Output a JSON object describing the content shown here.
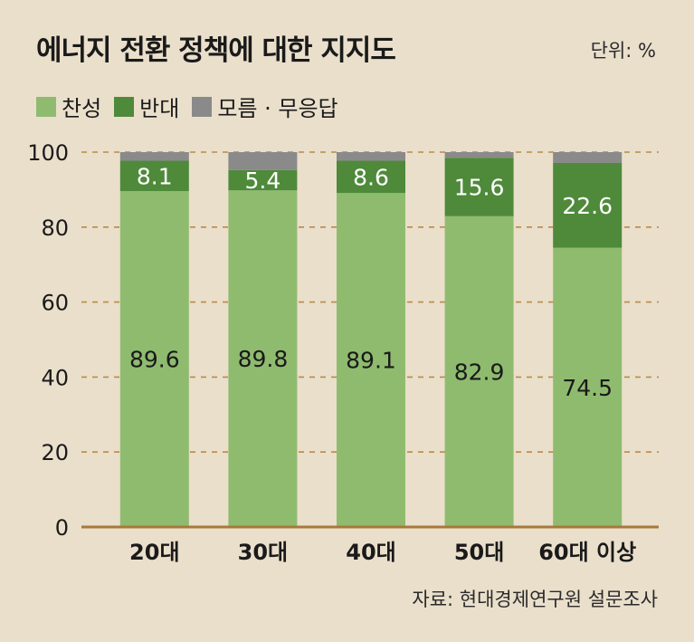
{
  "header": {
    "title": "에너지 전환 정책에 대한 지지도",
    "unit": "단위: %"
  },
  "footer": {
    "source": "자료: 현대경제연구원 설문조사"
  },
  "colors": {
    "favor": "#8fbb6f",
    "oppose": "#4e8a3a",
    "unknown": "#8a8a8a",
    "background": "#eadfcb",
    "grid": "#b98a4a",
    "baseline": "#a8783a"
  },
  "chart_data": {
    "type": "bar",
    "stacked": true,
    "title": "에너지 전환 정책에 대한 지지도",
    "unit": "단위: %",
    "categories": [
      "20대",
      "30대",
      "40대",
      "50대",
      "60대 이상"
    ],
    "series": [
      {
        "name": "찬성",
        "values": [
          89.6,
          89.8,
          89.1,
          82.9,
          74.5
        ],
        "color": "#8fbb6f"
      },
      {
        "name": "반대",
        "values": [
          8.1,
          5.4,
          8.6,
          15.6,
          22.6
        ],
        "color": "#4e8a3a"
      },
      {
        "name": "모름 · 무응답",
        "values": [
          2.3,
          4.8,
          2.3,
          1.5,
          2.9
        ],
        "color": "#8a8a8a"
      }
    ],
    "data_labels": {
      "찬성": [
        "89.6",
        "89.8",
        "89.1",
        "82.9",
        "74.5"
      ],
      "반대": [
        "8.1",
        "5.4",
        "8.6",
        "15.6",
        "22.6"
      ]
    },
    "y_ticks": [
      "0",
      "20",
      "40",
      "60",
      "80",
      "100"
    ],
    "ylim": [
      0,
      100
    ],
    "grid": true,
    "legend_position": "top-left",
    "source": "자료: 현대경제연구원 설문조사"
  }
}
